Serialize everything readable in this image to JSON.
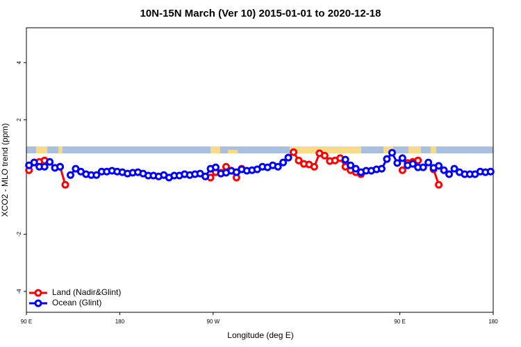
{
  "chart_data": {
    "type": "line",
    "title": "10N-15N March (Ver 10)   2015-01-01 to 2020-12-18",
    "x_label": "Longitude (deg E)",
    "y_label": "XCO2 - MLO trend (ppm)",
    "x": [
      92.5,
      97.5,
      102.5,
      107.5,
      112.5,
      117.5,
      122.5,
      127.5,
      132.5,
      137.5,
      142.5,
      147.5,
      152.5,
      157.5,
      162.5,
      167.5,
      172.5,
      177.5,
      182.5,
      187.5,
      192.5,
      197.5,
      202.5,
      207.5,
      212.5,
      217.5,
      222.5,
      227.5,
      232.5,
      237.5,
      242.5,
      247.5,
      252.5,
      257.5,
      262.5,
      267.5,
      272.5,
      277.5,
      282.5,
      287.5,
      292.5,
      297.5,
      302.5,
      307.5,
      312.5,
      317.5,
      322.5,
      327.5,
      332.5,
      337.5,
      342.5,
      347.5,
      352.5,
      357.5,
      362.5,
      367.5,
      372.5,
      377.5,
      382.5,
      387.5,
      392.5,
      397.5,
      402.5,
      407.5,
      412.5,
      417.5,
      422.5,
      427.5,
      432.5,
      437.5,
      442.5,
      447.5,
      452.5,
      457.5,
      462.5,
      467.5,
      472.5,
      477.5,
      482.5,
      487.5,
      492.5,
      497.5,
      502.5,
      507.5,
      512.5,
      517.5,
      522.5,
      527.5,
      532.5,
      537.5
    ],
    "series": [
      {
        "name": "Land (Nadir&Glint)",
        "color": "#ff0000",
        "values": [
          0.24,
          0.51,
          0.53,
          0.58,
          null,
          null,
          0.36,
          -0.27,
          null,
          null,
          null,
          null,
          null,
          null,
          null,
          null,
          null,
          null,
          null,
          null,
          null,
          null,
          null,
          null,
          null,
          null,
          null,
          null,
          null,
          null,
          null,
          null,
          null,
          null,
          null,
          -0.02,
          0.17,
          0.15,
          0.36,
          0.22,
          -0.02,
          0.29,
          null,
          null,
          null,
          null,
          null,
          null,
          null,
          null,
          0.68,
          0.87,
          0.58,
          0.46,
          0.44,
          0.36,
          0.83,
          0.75,
          0.56,
          0.58,
          0.66,
          0.36,
          0.24,
          0.17,
          0.1,
          null,
          null,
          null,
          null,
          0.63,
          null,
          null,
          0.24,
          0.49,
          0.53,
          0.58,
          null,
          null,
          0.27,
          -0.27,
          null,
          null,
          null,
          null,
          null,
          null,
          null,
          null,
          null,
          null
        ]
      },
      {
        "name": "Ocean (Glint)",
        "color": "#0000ff",
        "values": [
          0.41,
          0.51,
          0.36,
          0.36,
          0.53,
          0.32,
          0.36,
          null,
          0.07,
          0.29,
          0.19,
          0.1,
          0.07,
          0.07,
          0.19,
          0.19,
          0.22,
          0.19,
          0.17,
          0.12,
          0.15,
          0.17,
          0.12,
          0.05,
          0.05,
          0.02,
          0.07,
          -0.02,
          0.05,
          0.05,
          0.1,
          0.07,
          0.1,
          0.12,
          0.02,
          0.29,
          0.34,
          0.12,
          0.15,
          0.22,
          0.17,
          0.27,
          0.22,
          0.24,
          0.27,
          0.36,
          0.34,
          0.41,
          0.36,
          0.51,
          0.68,
          null,
          null,
          null,
          null,
          null,
          null,
          null,
          null,
          null,
          null,
          0.61,
          0.41,
          0.29,
          0.17,
          0.22,
          0.22,
          0.27,
          0.29,
          0.63,
          0.85,
          0.49,
          0.66,
          0.41,
          0.46,
          0.34,
          0.34,
          0.51,
          0.32,
          0.39,
          0.24,
          0.1,
          0.29,
          0.17,
          0.1,
          0.1,
          0.1,
          0.19,
          0.17,
          0.19
        ]
      }
    ],
    "xlim": [
      90,
      540
    ],
    "xticks": [
      {
        "value": 90,
        "label": "90 E"
      },
      180,
      {
        "value": 270,
        "label": "90 W"
      },
      {
        "value": 450,
        "label": "90 E"
      },
      {
        "value": 540,
        "label": "180"
      }
    ],
    "ylim": [
      -4.73,
      5.22
    ],
    "yticks": [
      -4,
      -2,
      2,
      4
    ],
    "legend": "bottom-left"
  }
}
